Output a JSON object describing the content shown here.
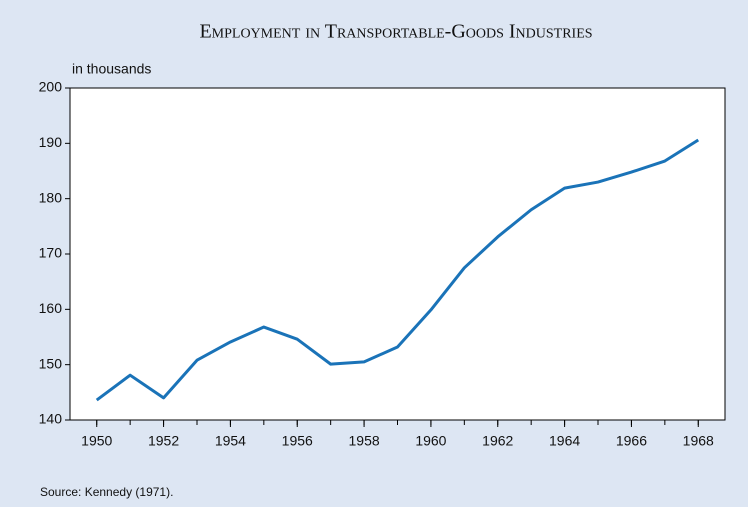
{
  "chart_data": {
    "type": "line",
    "title": "Employment in Transportable-Goods Industries",
    "y_label": "in thousands",
    "source": "Source: Kennedy (1971).",
    "x": [
      1950,
      1951,
      1952,
      1953,
      1954,
      1955,
      1956,
      1957,
      1958,
      1959,
      1960,
      1961,
      1962,
      1963,
      1964,
      1965,
      1966,
      1967,
      1968
    ],
    "series": [
      {
        "name": "Employment",
        "color": "#1a73b8",
        "values": [
          143.6,
          148.1,
          144.0,
          150.8,
          154.1,
          156.8,
          154.6,
          150.1,
          150.5,
          153.2,
          159.9,
          167.5,
          173.1,
          178.0,
          181.9,
          183.0,
          184.8,
          186.8,
          190.6
        ]
      }
    ],
    "xlim": [
      1949.2,
      1968.8
    ],
    "xticks": [
      1950,
      1952,
      1954,
      1956,
      1958,
      1960,
      1962,
      1964,
      1966,
      1968
    ],
    "ylim": [
      140,
      200
    ],
    "yticks": [
      140,
      150,
      160,
      170,
      180,
      190,
      200
    ],
    "grid": false
  }
}
